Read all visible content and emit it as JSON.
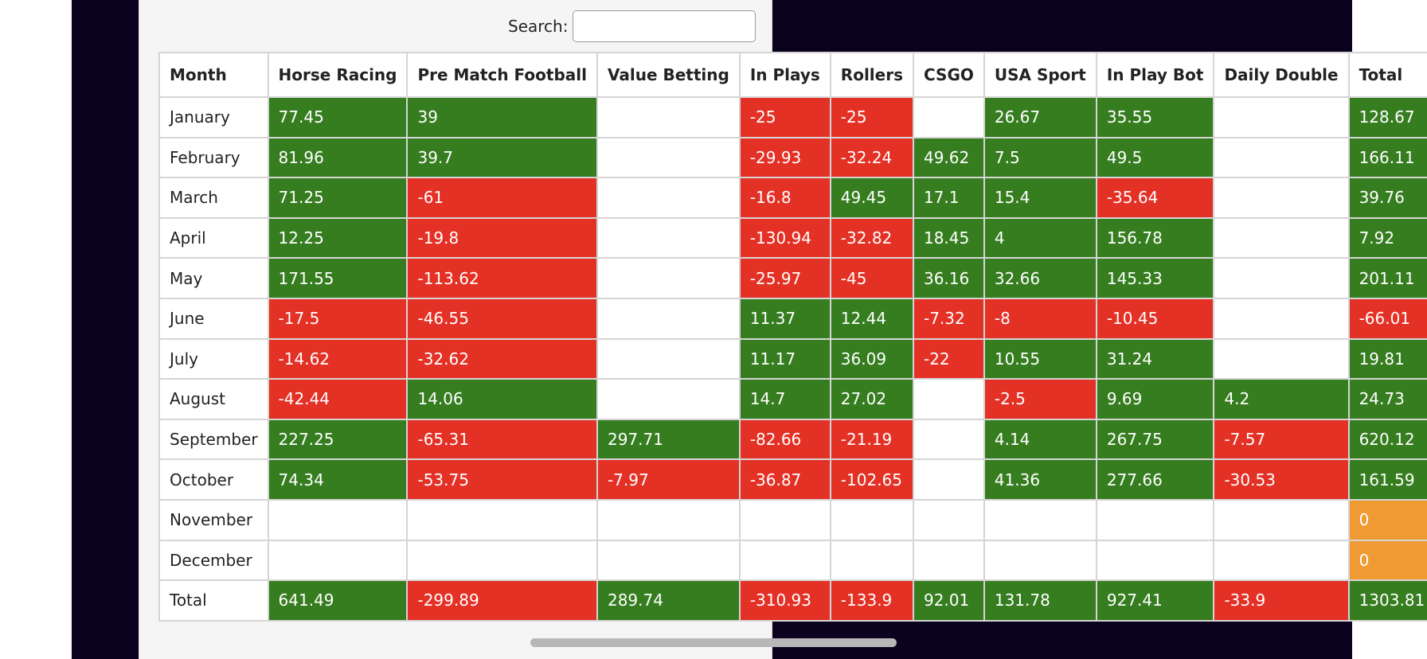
{
  "search": {
    "label": "Search:",
    "value": ""
  },
  "colors": {
    "positive": "#367d20",
    "negative": "#e43126",
    "zero": "#ef9a32"
  },
  "table": {
    "columns": [
      "Month",
      "Horse Racing",
      "Pre Match Football",
      "Value Betting",
      "In Plays",
      "Rollers",
      "CSGO",
      "USA Sport",
      "In Play Bot",
      "Daily Double",
      "Total"
    ],
    "rows": [
      [
        "January",
        "77.45",
        "39",
        "",
        "-25",
        "-25",
        "",
        "26.67",
        "35.55",
        "",
        "128.67"
      ],
      [
        "February",
        "81.96",
        "39.7",
        "",
        "-29.93",
        "-32.24",
        "49.62",
        "7.5",
        "49.5",
        "",
        "166.11"
      ],
      [
        "March",
        "71.25",
        "-61",
        "",
        "-16.8",
        "49.45",
        "17.1",
        "15.4",
        "-35.64",
        "",
        "39.76"
      ],
      [
        "April",
        "12.25",
        "-19.8",
        "",
        "-130.94",
        "-32.82",
        "18.45",
        "4",
        "156.78",
        "",
        "7.92"
      ],
      [
        "May",
        "171.55",
        "-113.62",
        "",
        "-25.97",
        "-45",
        "36.16",
        "32.66",
        "145.33",
        "",
        "201.11"
      ],
      [
        "June",
        "-17.5",
        "-46.55",
        "",
        "11.37",
        "12.44",
        "-7.32",
        "-8",
        "-10.45",
        "",
        "-66.01"
      ],
      [
        "July",
        "-14.62",
        "-32.62",
        "",
        "11.17",
        "36.09",
        "-22",
        "10.55",
        "31.24",
        "",
        "19.81"
      ],
      [
        "August",
        "-42.44",
        "14.06",
        "",
        "14.7",
        "27.02",
        "",
        "-2.5",
        "9.69",
        "4.2",
        "24.73"
      ],
      [
        "September",
        "227.25",
        "-65.31",
        "297.71",
        "-82.66",
        "-21.19",
        "",
        "4.14",
        "267.75",
        "-7.57",
        "620.12"
      ],
      [
        "October",
        "74.34",
        "-53.75",
        "-7.97",
        "-36.87",
        "-102.65",
        "",
        "41.36",
        "277.66",
        "-30.53",
        "161.59"
      ],
      [
        "November",
        "",
        "",
        "",
        "",
        "",
        "",
        "",
        "",
        "",
        "0"
      ],
      [
        "December",
        "",
        "",
        "",
        "",
        "",
        "",
        "",
        "",
        "",
        "0"
      ],
      [
        "Total",
        "641.49",
        "-299.89",
        "289.74",
        "-310.93",
        "-133.9",
        "92.01",
        "131.78",
        "927.41",
        "-33.9",
        "1303.81"
      ]
    ]
  }
}
